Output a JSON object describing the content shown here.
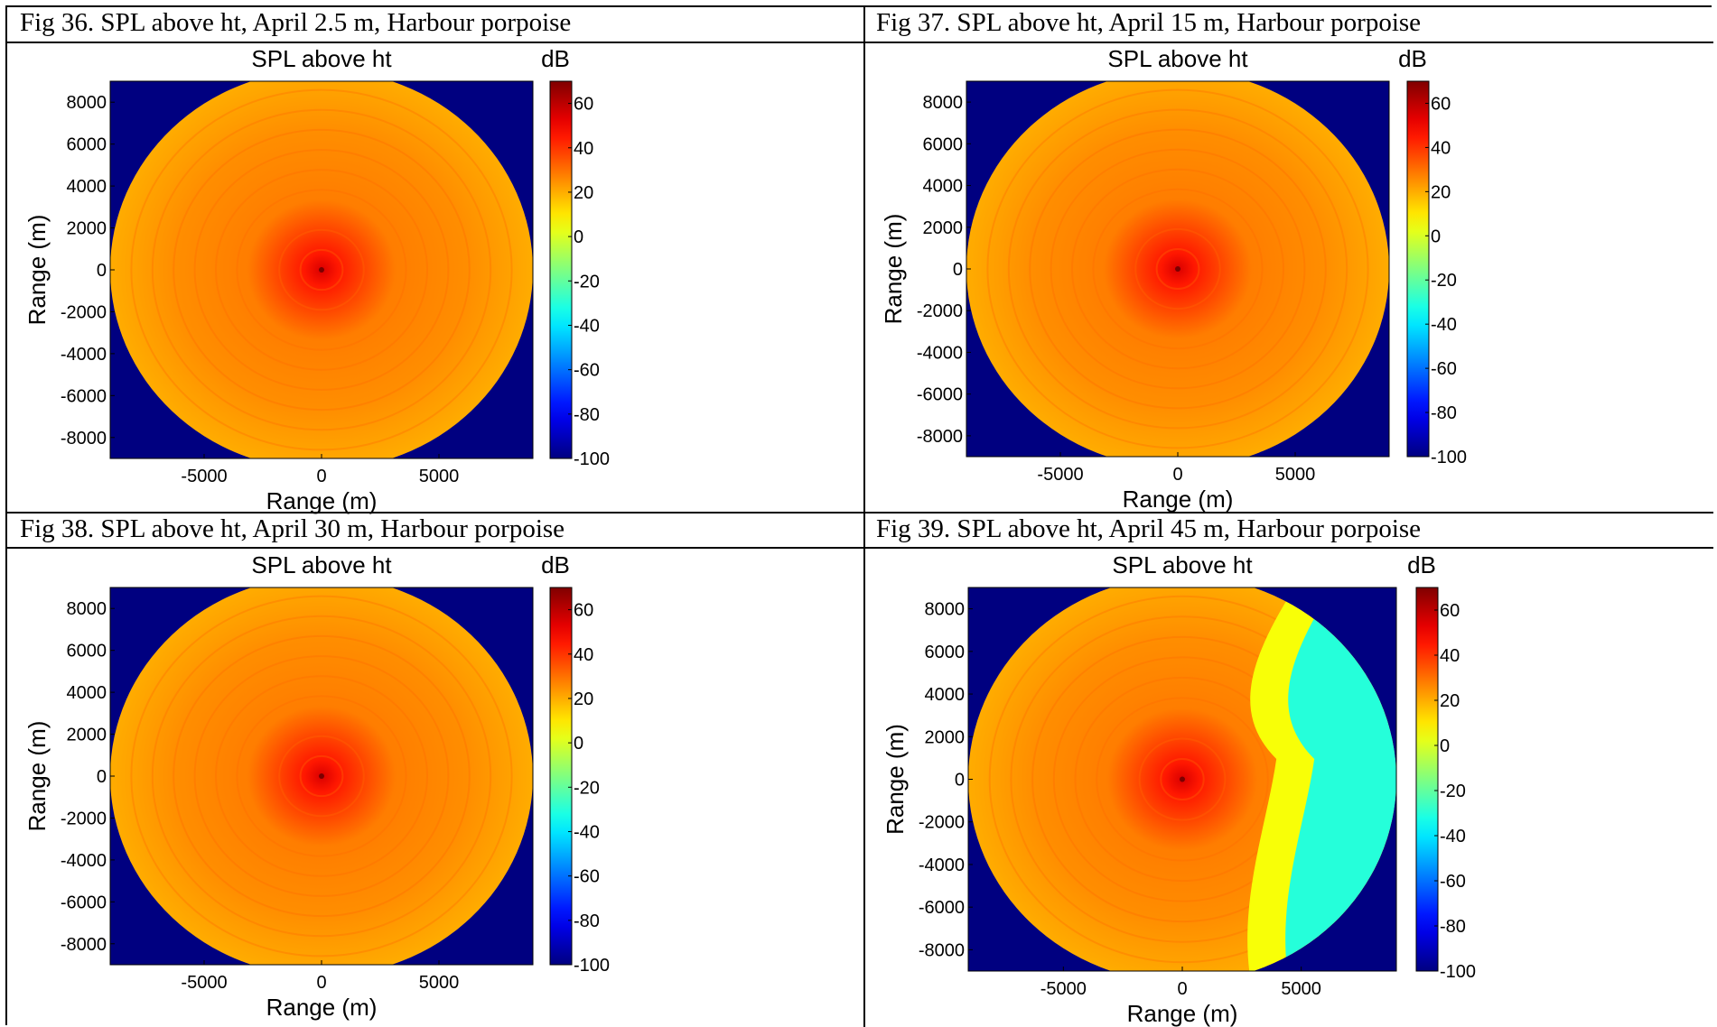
{
  "captions": [
    "Fig 36. SPL above ht, April 2.5 m, Harbour porpoise",
    "Fig 37. SPL above ht, April 15 m, Harbour porpoise",
    "Fig 38. SPL above ht, April 30 m, Harbour porpoise",
    "Fig 39. SPL above ht, April 45 m, Harbour porpoise"
  ],
  "chart_data": [
    {
      "type": "heatmap",
      "title": "SPL above ht",
      "xlabel": "Range (m)",
      "ylabel": "Range (m)",
      "colorbar_label": "dB",
      "xticks": [
        -5000,
        0,
        5000
      ],
      "yticks": [
        8000,
        6000,
        4000,
        2000,
        0,
        -2000,
        -4000,
        -6000,
        -8000
      ],
      "colorbar_ticks": [
        60,
        40,
        20,
        0,
        -20,
        -40,
        -60,
        -80,
        -100
      ],
      "xlim": [
        -9000,
        9000
      ],
      "ylim": [
        -9000,
        9000
      ],
      "clim": [
        -100,
        70
      ],
      "field": {
        "source_db": 55,
        "level_db": 25,
        "edge_db": 20,
        "outside_db": -100,
        "low_region": null
      },
      "colors": {
        "background": "#00008f",
        "source": "#ee1a00",
        "level": "#ffa000"
      }
    },
    {
      "type": "heatmap",
      "title": "SPL above ht",
      "xlabel": "Range (m)",
      "ylabel": "Range (m)",
      "colorbar_label": "dB",
      "xticks": [
        -5000,
        0,
        5000
      ],
      "yticks": [
        8000,
        6000,
        4000,
        2000,
        0,
        -2000,
        -4000,
        -6000,
        -8000
      ],
      "colorbar_ticks": [
        60,
        40,
        20,
        0,
        -20,
        -40,
        -60,
        -80,
        -100
      ],
      "xlim": [
        -9000,
        9000
      ],
      "ylim": [
        -9000,
        9000
      ],
      "clim": [
        -100,
        70
      ],
      "field": {
        "source_db": 55,
        "level_db": 25,
        "edge_db": 20,
        "outside_db": -100,
        "low_region": null
      },
      "colors": {
        "background": "#00008f",
        "source": "#ee1a00",
        "level": "#ffa000"
      }
    },
    {
      "type": "heatmap",
      "title": "SPL above ht",
      "xlabel": "Range (m)",
      "ylabel": "Range (m)",
      "colorbar_label": "dB",
      "xticks": [
        -5000,
        0,
        5000
      ],
      "yticks": [
        8000,
        6000,
        4000,
        2000,
        0,
        -2000,
        -4000,
        -6000,
        -8000
      ],
      "colorbar_ticks": [
        60,
        40,
        20,
        0,
        -20,
        -40,
        -60,
        -80,
        -100
      ],
      "xlim": [
        -9000,
        9000
      ],
      "ylim": [
        -9000,
        9000
      ],
      "clim": [
        -100,
        70
      ],
      "field": {
        "source_db": 55,
        "level_db": 25,
        "edge_db": 20,
        "outside_db": -100,
        "low_region": null
      },
      "colors": {
        "background": "#00008f",
        "source": "#ee1a00",
        "level": "#ffa000"
      }
    },
    {
      "type": "heatmap",
      "title": "SPL above ht",
      "xlabel": "Range (m)",
      "ylabel": "Range (m)",
      "colorbar_label": "dB",
      "xticks": [
        -5000,
        0,
        5000
      ],
      "yticks": [
        8000,
        6000,
        4000,
        2000,
        0,
        -2000,
        -4000,
        -6000,
        -8000
      ],
      "colorbar_ticks": [
        60,
        40,
        20,
        0,
        -20,
        -40,
        -60,
        -80,
        -100
      ],
      "xlim": [
        -9000,
        9000
      ],
      "ylim": [
        -9000,
        9000
      ],
      "clim": [
        -100,
        70
      ],
      "field": {
        "source_db": 55,
        "level_db": 25,
        "edge_db": 20,
        "outside_db": -100,
        "low_region": {
          "x_from_m": 3500,
          "level_db": -30,
          "transition_db": 5
        }
      },
      "colors": {
        "background": "#00008f",
        "source": "#ee1a00",
        "level": "#ffa000",
        "low": "#29b6ff",
        "transition": "#f0f020"
      }
    }
  ]
}
